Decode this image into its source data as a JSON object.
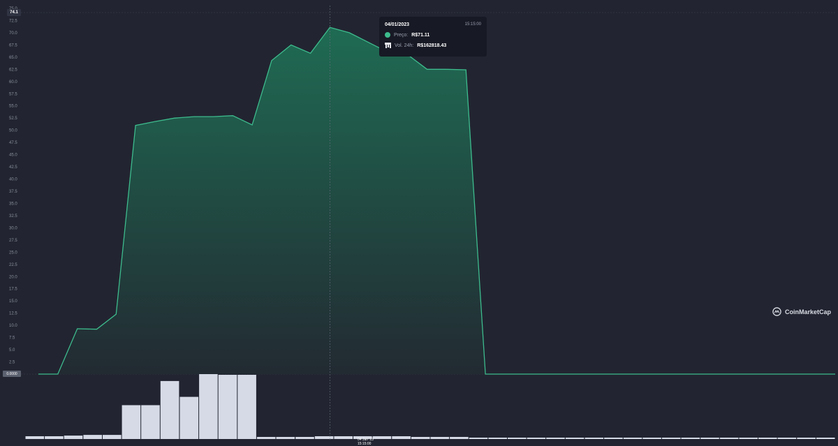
{
  "chart_data": {
    "type": "area",
    "y_axis": {
      "min": 0,
      "max": 75,
      "step": 2.5,
      "tick_labels": [
        "2.5",
        "5.0",
        "7.5",
        "10.0",
        "12.5",
        "15.0",
        "17.5",
        "20.0",
        "22.5",
        "25.0",
        "27.5",
        "30.0",
        "32.5",
        "35.0",
        "37.5",
        "40.0",
        "42.5",
        "45.0",
        "47.5",
        "50.0",
        "52.5",
        "55.0",
        "57.5",
        "60.0",
        "62.5",
        "65.0",
        "67.5",
        "70.0",
        "72.5",
        "75.0"
      ]
    },
    "x_axis": {
      "tick_labels": [
        "",
        "",
        "",
        "",
        "",
        "",
        "",
        "",
        "",
        "",
        "",
        "",
        "",
        "",
        "",
        "",
        ""
      ]
    },
    "price_series": {
      "color": "#3dbb8d",
      "values": [
        0,
        0,
        9.3,
        9.2,
        12.3,
        51,
        51.8,
        52.5,
        52.8,
        52.8,
        53,
        51.1,
        64.3,
        67.5,
        65.8,
        71.11,
        70,
        68,
        66,
        65.5,
        62.5,
        62.5,
        62.4,
        0,
        0,
        0,
        0,
        0,
        0,
        0,
        0,
        0,
        0,
        0,
        0,
        0,
        0,
        0,
        0,
        0,
        0,
        0
      ]
    },
    "volume_bars": {
      "color": "#d5dae6",
      "values": [
        0.4,
        0.4,
        0.5,
        0.6,
        0.6,
        4.9,
        4.9,
        8.4,
        6.1,
        9.4,
        9.3,
        9.3,
        0.3,
        0.3,
        0.3,
        0.4,
        0.4,
        0.4,
        0.4,
        0.4,
        0.3,
        0.3,
        0.3,
        0.2,
        0.2,
        0.2,
        0.2,
        0.2,
        0.2,
        0.2,
        0.2,
        0.2,
        0.2,
        0.2,
        0.2,
        0.2,
        0.2,
        0.2,
        0.2,
        0.2,
        0.2,
        0.2
      ]
    },
    "hover_index": 15
  },
  "current_price_tag": "74.1",
  "zero_tag": "0.0000",
  "hover_x_label": "04 Jan '23 15:15:00",
  "tooltip": {
    "date": "04/01/2023",
    "time": "15:15:00",
    "price_label": "Preço:",
    "price_value": "R$71.11",
    "volume_label": "Vol. 24h:",
    "volume_value": "R$162818.43"
  },
  "watermark": "CoinMarketCap",
  "colors": {
    "background": "#222531",
    "line": "#3dbb8d",
    "tooltip_bg": "#171924",
    "volume": "#d5dae6"
  }
}
